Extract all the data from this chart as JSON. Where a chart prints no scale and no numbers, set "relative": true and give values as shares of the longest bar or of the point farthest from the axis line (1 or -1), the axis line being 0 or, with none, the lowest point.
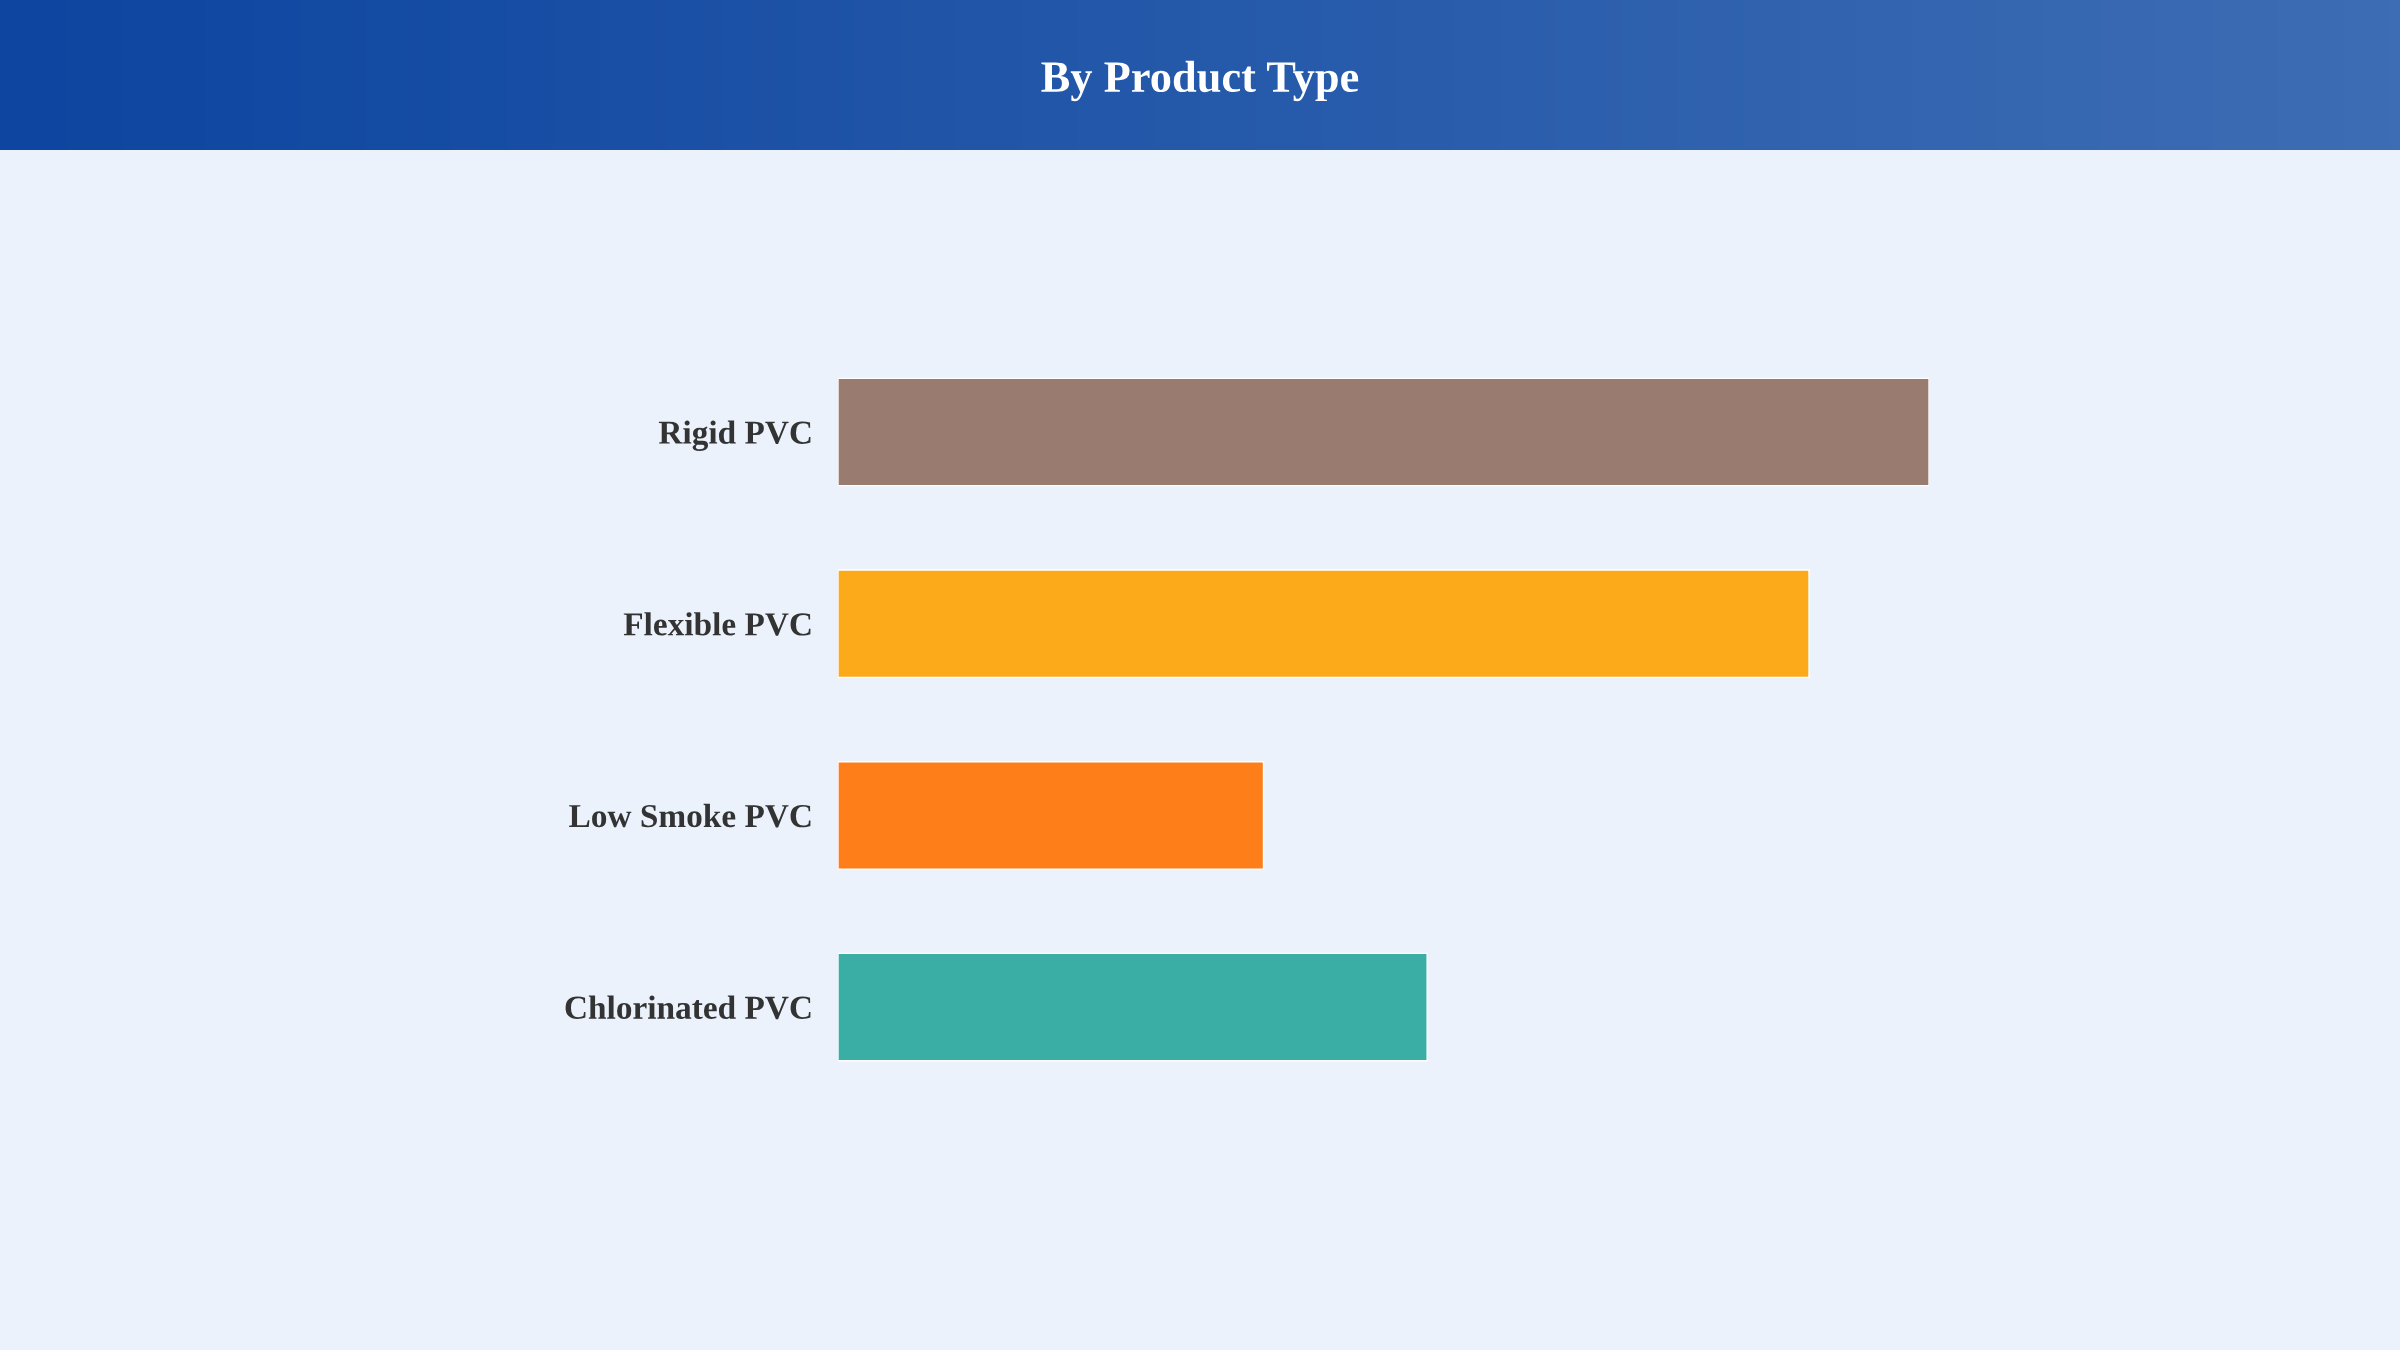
{
  "chart_data": {
    "type": "bar",
    "title": "By Product Type",
    "orientation": "horizontal",
    "relative": true,
    "categories": [
      "Rigid PVC",
      "Flexible PVC",
      "Low Smoke PVC",
      "Chlorinated PVC"
    ],
    "values": [
      1,
      0.89,
      0.39,
      0.54
    ],
    "colors": [
      "#997b70",
      "#fca91a",
      "#fe7e1a",
      "#3aaea5"
    ]
  }
}
